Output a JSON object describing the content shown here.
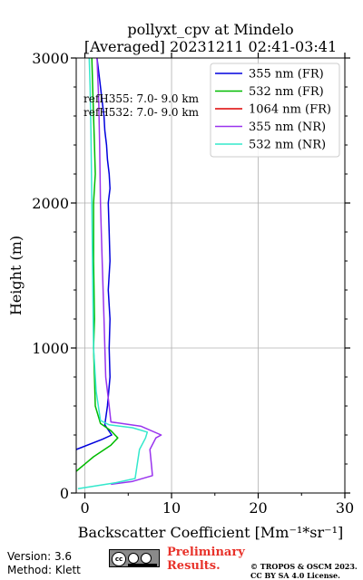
{
  "chart_data": {
    "type": "line",
    "title": "pollyxt_cpv at Mindelo",
    "subtitle": "[Averaged] 20231211 02:41-03:41",
    "xlabel": "Backscatter Coefficient [Mm⁻¹*sr⁻¹]",
    "ylabel": "Height (m)",
    "xlim": [
      -1,
      30
    ],
    "ylim": [
      0,
      3000
    ],
    "xticks": [
      0,
      10,
      20,
      30
    ],
    "yticks": [
      0,
      1000,
      2000,
      3000
    ],
    "grid": true,
    "legend_position": "top-right",
    "annotations": [
      "refH355:  7.0- 9.0 km",
      "refH532:  7.0- 9.0 km"
    ],
    "series": [
      {
        "name": "355 nm (FR)",
        "color": "#0000dd",
        "x": [
          -1.0,
          2.0,
          3.1,
          2.3,
          2.6,
          2.9,
          2.8,
          2.9,
          2.7,
          2.9,
          2.8,
          2.7,
          2.9,
          2.8,
          2.6,
          2.5,
          2.3,
          2.2,
          2.0,
          1.7,
          1.4
        ],
        "y": [
          300,
          370,
          400,
          470,
          600,
          800,
          1000,
          1200,
          1400,
          1600,
          1800,
          2000,
          2100,
          2200,
          2300,
          2400,
          2500,
          2600,
          2700,
          2850,
          3000
        ]
      },
      {
        "name": "532 nm (FR)",
        "color": "#00bb00",
        "x": [
          -1.0,
          1.0,
          3.0,
          3.8,
          3.0,
          1.8,
          1.2,
          1.1,
          1.0,
          1.1,
          1.0,
          1.0,
          1.2,
          1.1,
          1.0,
          0.9,
          0.8
        ],
        "y": [
          150,
          250,
          330,
          380,
          430,
          480,
          600,
          800,
          1000,
          1200,
          1600,
          2000,
          2200,
          2400,
          2600,
          2800,
          3000
        ]
      },
      {
        "name": "1064 nm (FR)",
        "color": "#dd0000",
        "x": [],
        "y": []
      },
      {
        "name": "355 nm (NR)",
        "color": "#9933ee",
        "x": [
          3.0,
          5.5,
          7.8,
          7.7,
          7.5,
          8.2,
          8.8,
          6.5,
          3.0,
          2.8,
          2.4,
          2.2,
          2.0,
          1.8,
          1.7,
          1.6,
          1.4
        ],
        "y": [
          60,
          80,
          120,
          180,
          300,
          380,
          400,
          460,
          490,
          600,
          800,
          1200,
          1600,
          2000,
          2400,
          2700,
          3000
        ]
      },
      {
        "name": "532 nm (NR)",
        "color": "#33e8cc",
        "x": [
          -0.8,
          3.5,
          5.8,
          6.0,
          6.3,
          7.0,
          7.2,
          5.5,
          2.8,
          1.8,
          1.3,
          1.0,
          0.9,
          0.8,
          0.7,
          0.6,
          0.5
        ],
        "y": [
          30,
          70,
          100,
          180,
          300,
          380,
          420,
          450,
          470,
          500,
          700,
          1000,
          1500,
          2000,
          2500,
          2800,
          3000
        ]
      }
    ]
  },
  "footer": {
    "version": "Version: 3.6",
    "method": "Method: Klett",
    "cc_text": "cc",
    "prelim_line1": "Preliminary",
    "prelim_line2": "Results.",
    "copyright_line1": "© TROPOS & OSCM 2023.",
    "copyright_line2": "CC BY SA 4.0 License."
  }
}
